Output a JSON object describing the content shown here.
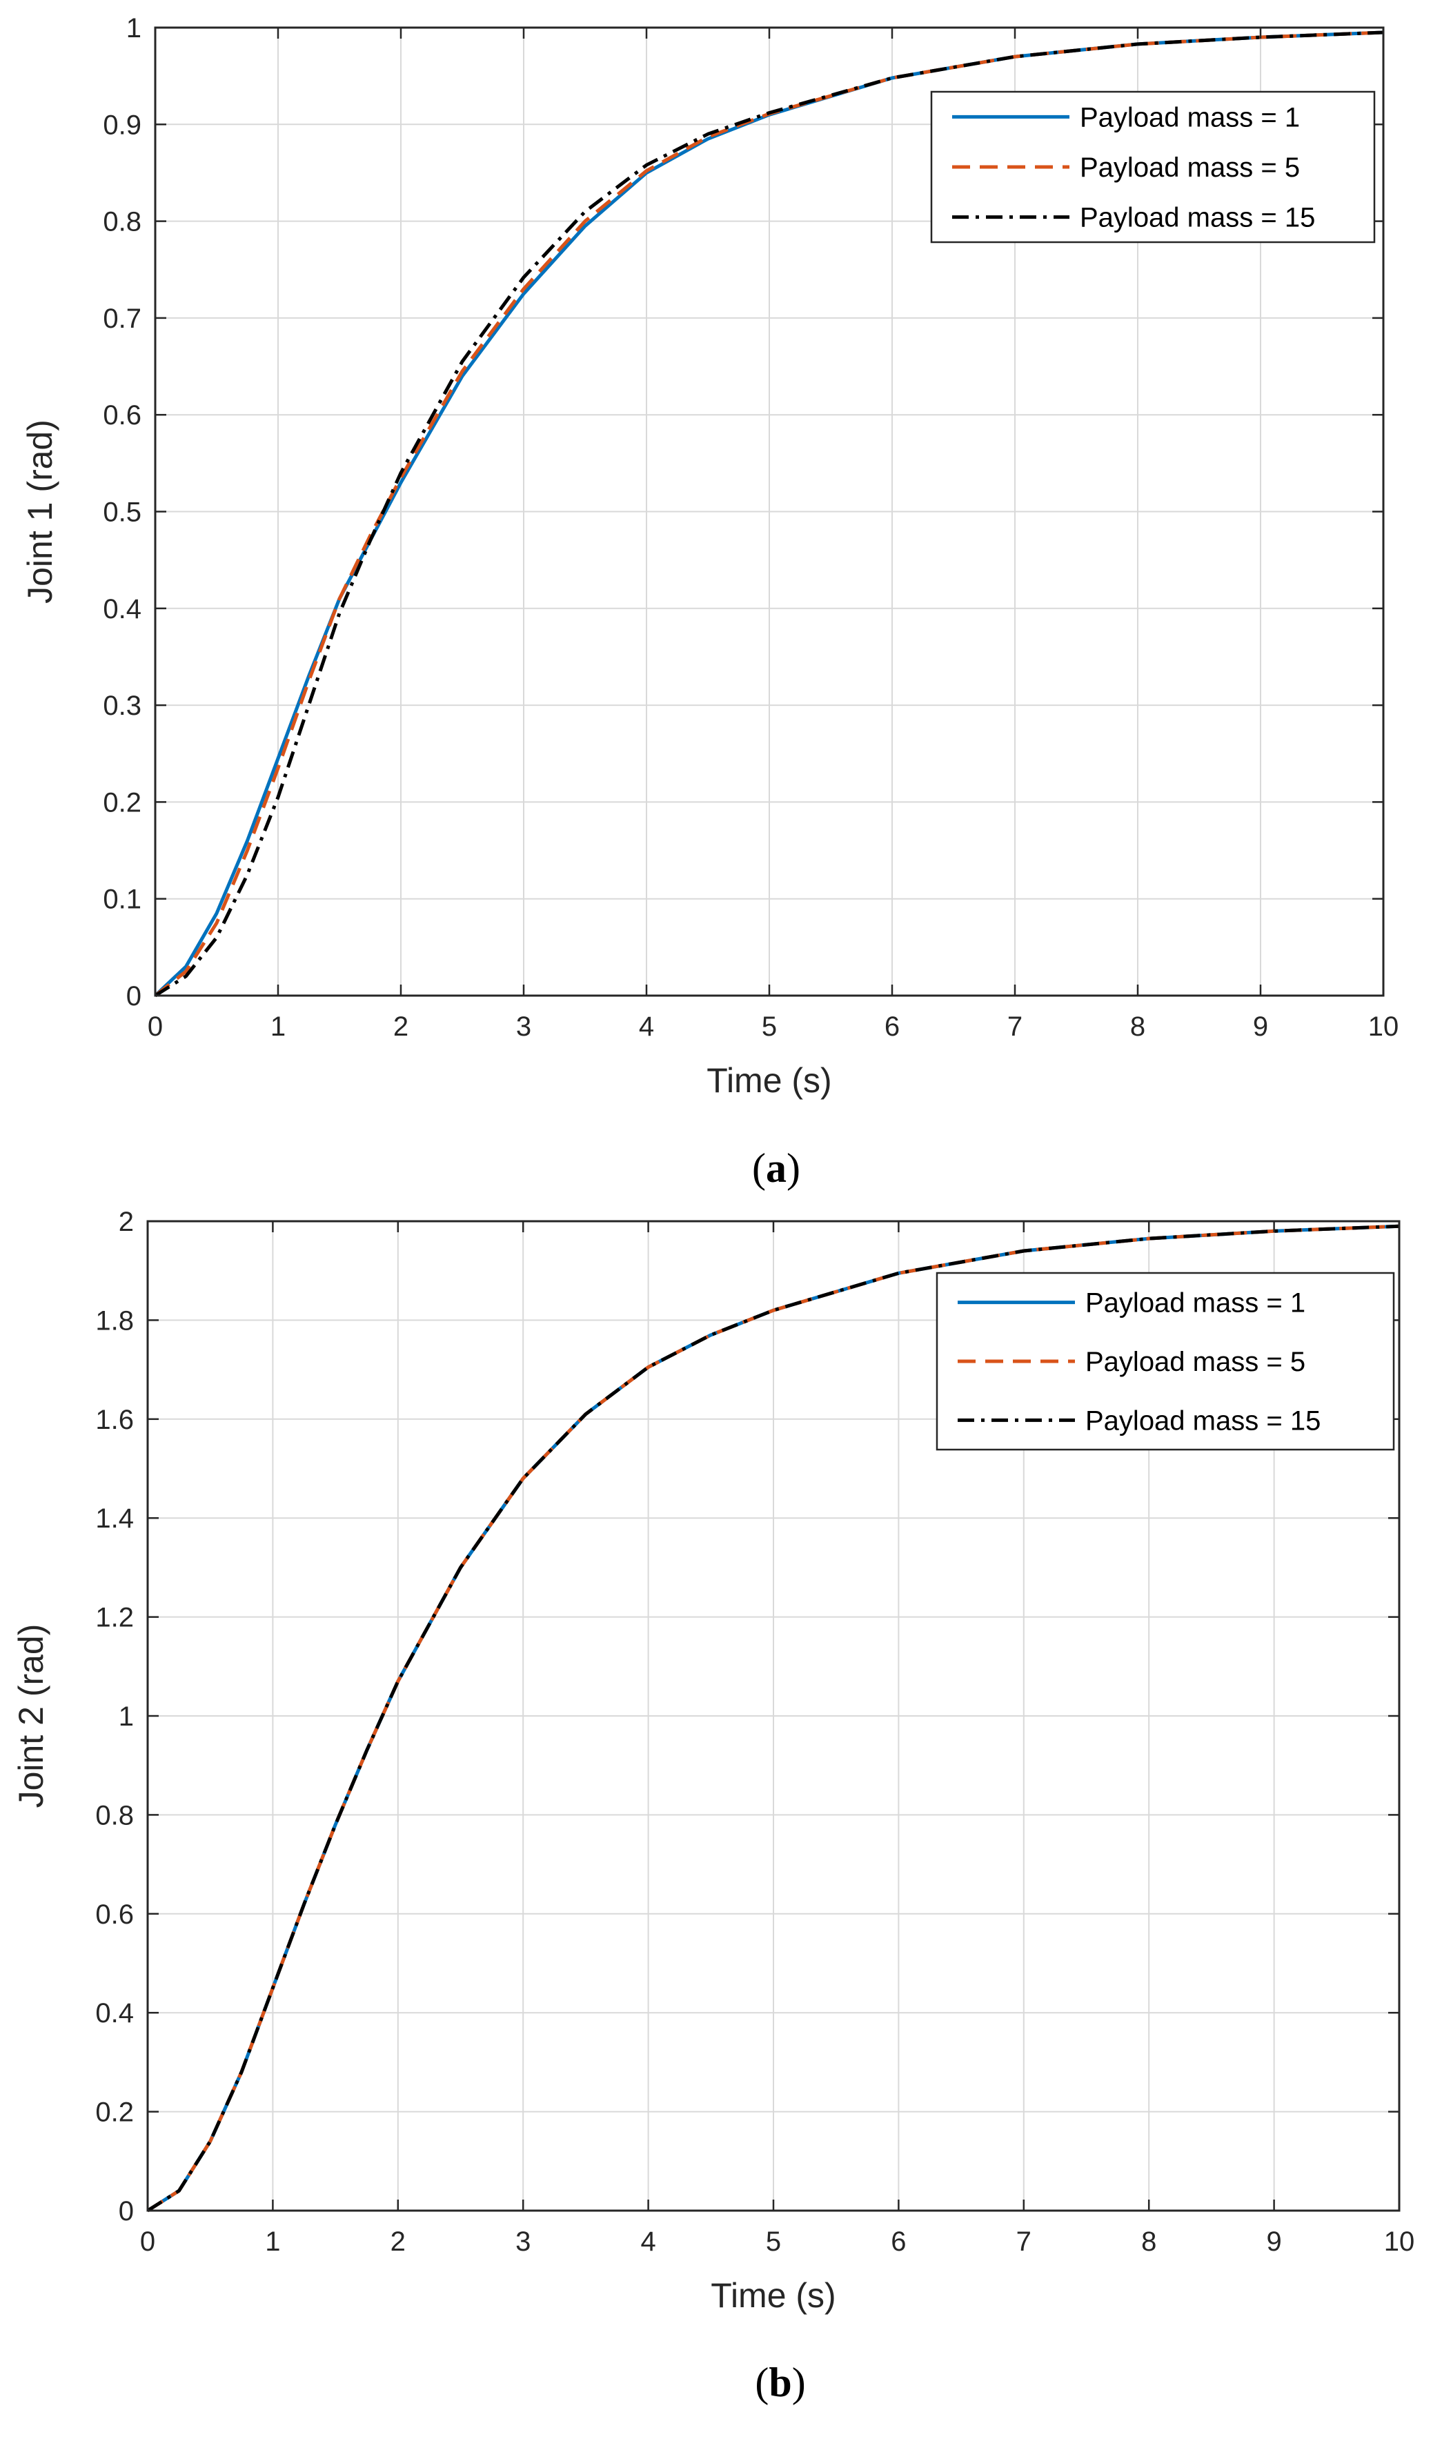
{
  "chart_data": [
    {
      "type": "line",
      "panel": "a",
      "caption_letter": "a",
      "xlabel": "Time (s)",
      "ylabel": "Joint 1   (rad)",
      "xlim": [
        0,
        10
      ],
      "ylim": [
        0,
        1
      ],
      "xticks": [
        0,
        1,
        2,
        3,
        4,
        5,
        6,
        7,
        8,
        9,
        10
      ],
      "yticks": [
        0,
        0.1,
        0.2,
        0.3,
        0.4,
        0.5,
        0.6,
        0.7,
        0.8,
        0.9,
        1
      ],
      "grid": true,
      "legend_position": "top-right",
      "x": [
        0,
        0.25,
        0.5,
        0.75,
        1,
        1.25,
        1.5,
        1.75,
        2,
        2.5,
        3,
        3.5,
        4,
        4.5,
        5,
        6,
        7,
        8,
        9,
        10
      ],
      "series": [
        {
          "name": "Payload mass = 1",
          "color": "#0072BD",
          "style": "solid",
          "values": [
            0,
            0.03,
            0.085,
            0.16,
            0.245,
            0.33,
            0.41,
            0.47,
            0.53,
            0.64,
            0.725,
            0.795,
            0.85,
            0.885,
            0.91,
            0.948,
            0.97,
            0.983,
            0.99,
            0.995
          ]
        },
        {
          "name": "Payload mass = 5",
          "color": "#D95319",
          "style": "dashed",
          "values": [
            0,
            0.025,
            0.075,
            0.15,
            0.235,
            0.325,
            0.41,
            0.475,
            0.535,
            0.645,
            0.73,
            0.8,
            0.852,
            0.887,
            0.911,
            0.948,
            0.97,
            0.983,
            0.99,
            0.995
          ]
        },
        {
          "name": "Payload mass = 15",
          "color": "#000000",
          "style": "dashdot",
          "values": [
            0,
            0.02,
            0.06,
            0.125,
            0.205,
            0.3,
            0.395,
            0.47,
            0.54,
            0.655,
            0.742,
            0.81,
            0.858,
            0.89,
            0.912,
            0.948,
            0.97,
            0.983,
            0.99,
            0.995
          ]
        }
      ]
    },
    {
      "type": "line",
      "panel": "b",
      "caption_letter": "b",
      "xlabel": "Time (s)",
      "ylabel": "Joint 2   (rad)",
      "xlim": [
        0,
        10
      ],
      "ylim": [
        0,
        2
      ],
      "xticks": [
        0,
        1,
        2,
        3,
        4,
        5,
        6,
        7,
        8,
        9,
        10
      ],
      "yticks": [
        0,
        0.2,
        0.4,
        0.6,
        0.8,
        1,
        1.2,
        1.4,
        1.6,
        1.8,
        2
      ],
      "grid": true,
      "legend_position": "top-right",
      "x": [
        0,
        0.25,
        0.5,
        0.75,
        1,
        1.25,
        1.5,
        1.75,
        2,
        2.5,
        3,
        3.5,
        4,
        4.5,
        5,
        6,
        7,
        8,
        9,
        10
      ],
      "series": [
        {
          "name": "Payload mass = 1",
          "color": "#0072BD",
          "style": "solid",
          "values": [
            0,
            0.04,
            0.14,
            0.28,
            0.45,
            0.62,
            0.78,
            0.93,
            1.07,
            1.3,
            1.48,
            1.61,
            1.705,
            1.77,
            1.82,
            1.895,
            1.94,
            1.965,
            1.98,
            1.99
          ]
        },
        {
          "name": "Payload mass = 5",
          "color": "#D95319",
          "style": "dashed",
          "values": [
            0,
            0.04,
            0.14,
            0.28,
            0.45,
            0.62,
            0.78,
            0.93,
            1.07,
            1.3,
            1.48,
            1.61,
            1.705,
            1.77,
            1.82,
            1.895,
            1.94,
            1.965,
            1.98,
            1.99
          ]
        },
        {
          "name": "Payload mass = 15",
          "color": "#000000",
          "style": "dashdot",
          "values": [
            0,
            0.04,
            0.14,
            0.28,
            0.45,
            0.62,
            0.78,
            0.93,
            1.07,
            1.3,
            1.48,
            1.61,
            1.705,
            1.77,
            1.82,
            1.895,
            1.94,
            1.965,
            1.98,
            1.99
          ]
        }
      ]
    }
  ]
}
